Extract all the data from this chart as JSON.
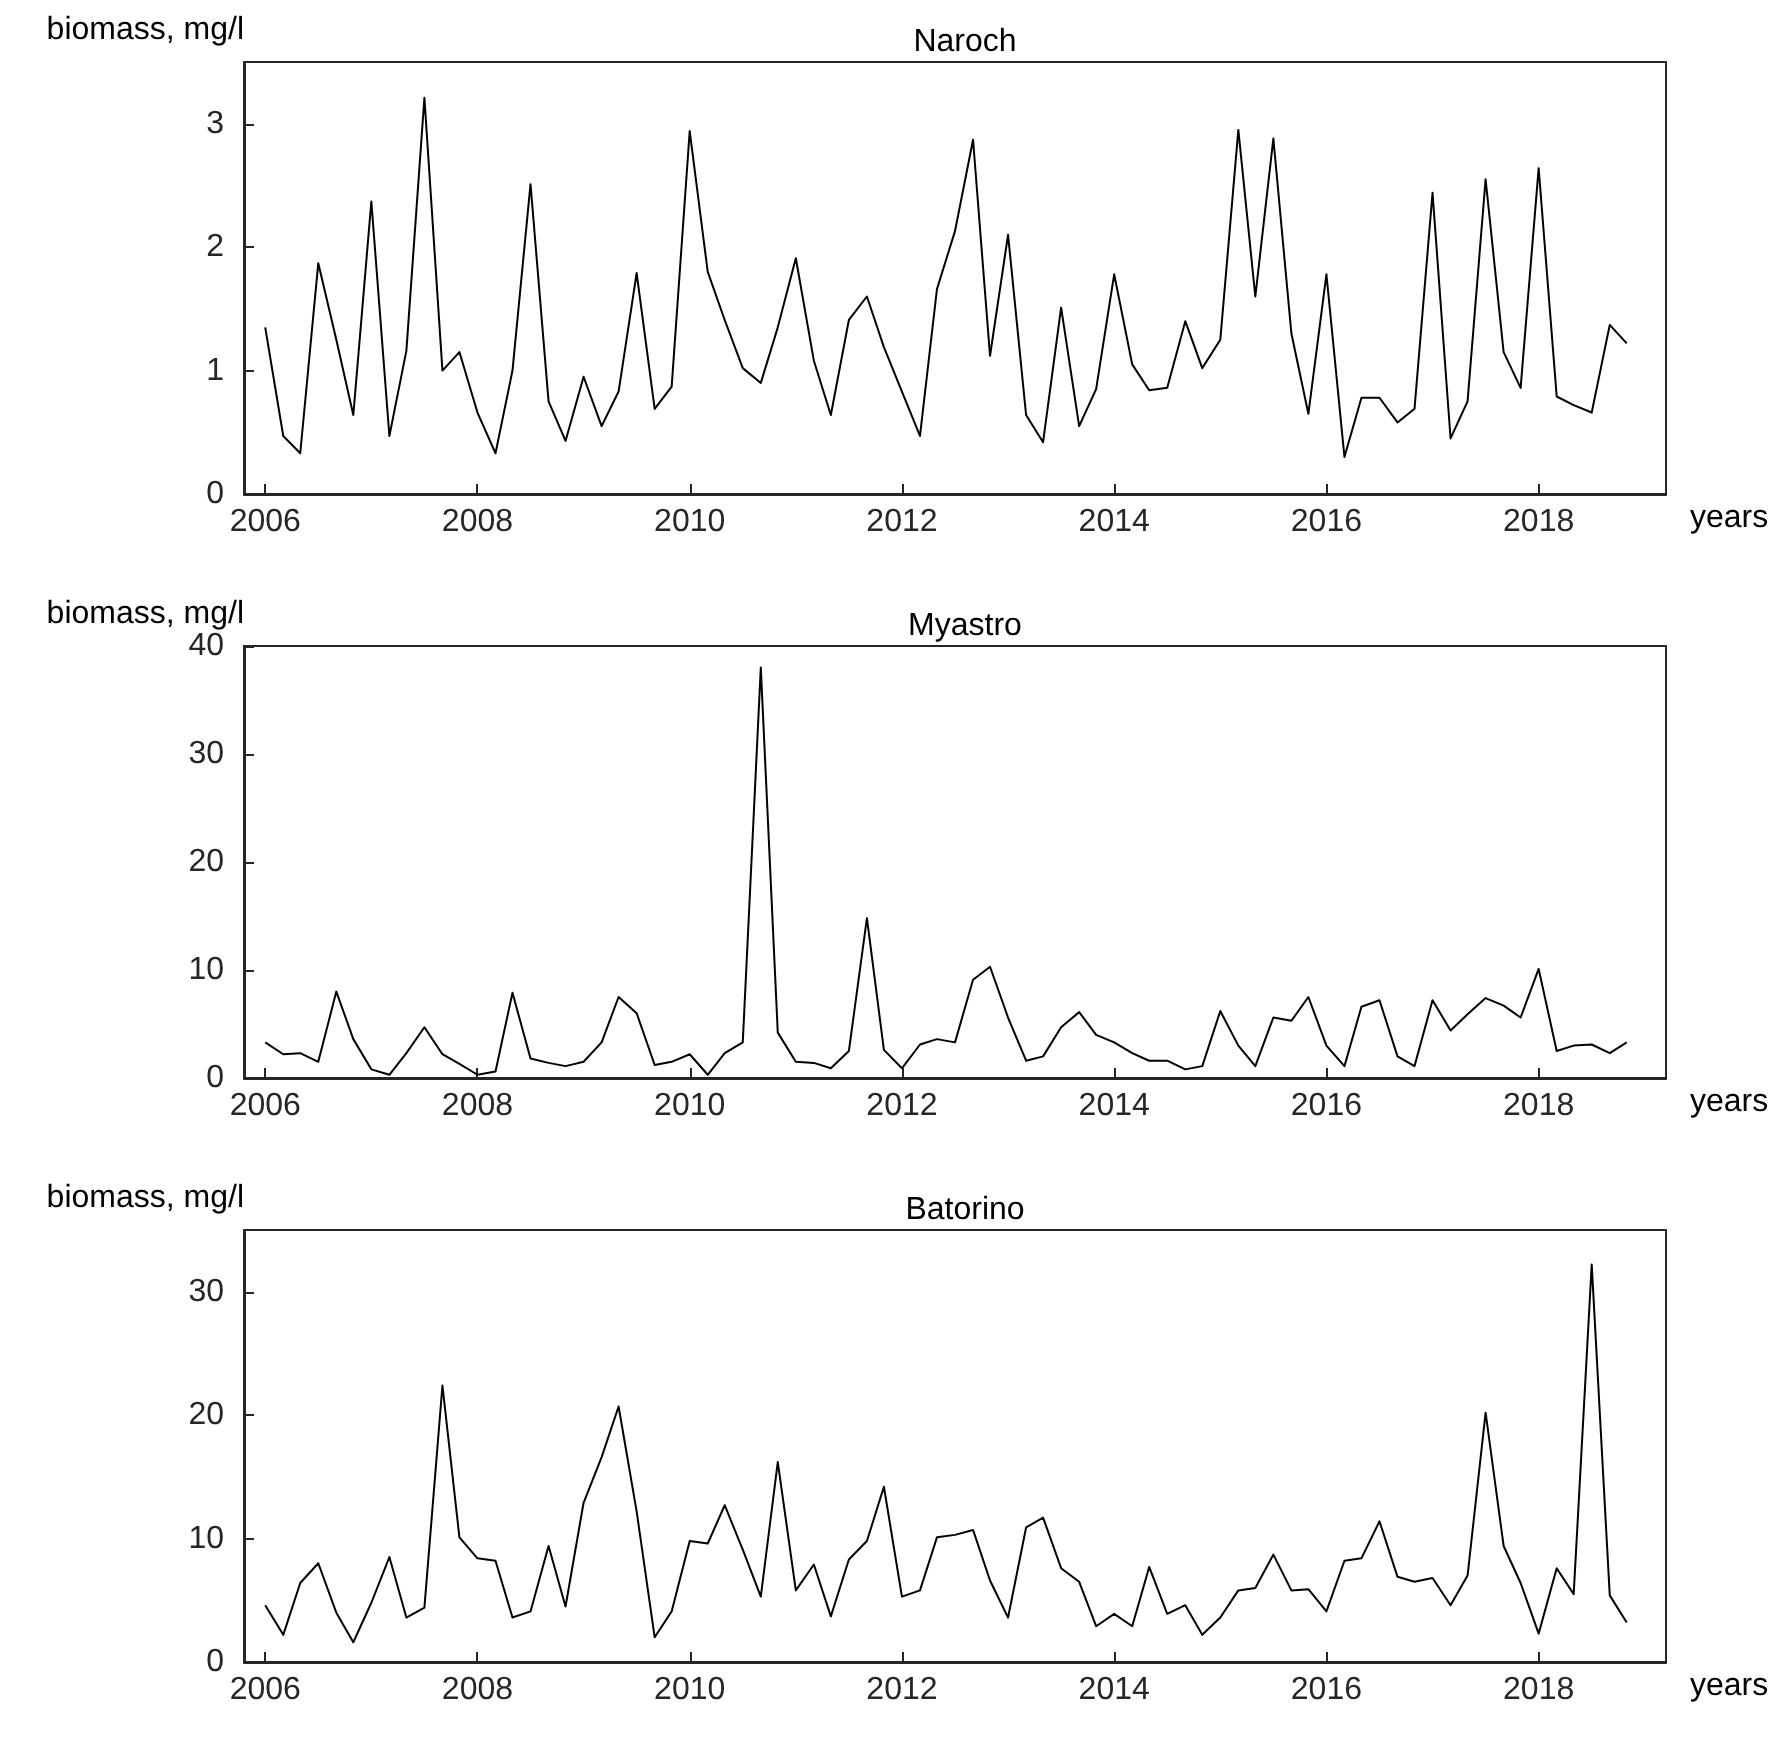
{
  "chart_data": [
    {
      "type": "line",
      "title": "Naroch",
      "ylabel": "biomass, mg/l",
      "xlabel": "years",
      "grid": false,
      "marker": "none",
      "line_style": "solid",
      "xlim": [
        2005.8,
        2019.2
      ],
      "xticks": [
        2006,
        2008,
        2010,
        2012,
        2014,
        2016,
        2018
      ],
      "ylim": [
        0,
        3.5
      ],
      "yticks": [
        0,
        1,
        2,
        3
      ],
      "x": [
        2006,
        2006.17,
        2006.33,
        2006.5,
        2006.67,
        2006.83,
        2007,
        2007.17,
        2007.33,
        2007.5,
        2007.67,
        2007.83,
        2008,
        2008.17,
        2008.33,
        2008.5,
        2008.67,
        2008.83,
        2009,
        2009.17,
        2009.33,
        2009.5,
        2009.67,
        2009.83,
        2010,
        2010.17,
        2010.33,
        2010.5,
        2010.67,
        2010.83,
        2011,
        2011.17,
        2011.33,
        2011.5,
        2011.67,
        2011.83,
        2012,
        2012.17,
        2012.33,
        2012.5,
        2012.67,
        2012.83,
        2013,
        2013.17,
        2013.33,
        2013.5,
        2013.67,
        2013.83,
        2014,
        2014.17,
        2014.33,
        2014.5,
        2014.67,
        2014.83,
        2015,
        2015.17,
        2015.33,
        2015.5,
        2015.67,
        2015.83,
        2016,
        2016.17,
        2016.33,
        2016.5,
        2016.67,
        2016.83,
        2017,
        2017.17,
        2017.33,
        2017.5,
        2017.67,
        2017.83,
        2018,
        2018.17,
        2018.33,
        2018.5,
        2018.67,
        2018.83
      ],
      "series": [
        {
          "color": "#000000",
          "values": [
            1.35,
            0.47,
            0.33,
            1.87,
            1.25,
            0.64,
            2.37,
            0.47,
            1.16,
            3.21,
            1.0,
            1.15,
            0.66,
            0.33,
            1.0,
            2.51,
            0.75,
            0.43,
            0.95,
            0.55,
            0.83,
            1.79,
            0.69,
            0.87,
            2.94,
            1.8,
            1.41,
            1.02,
            0.9,
            1.35,
            1.91,
            1.08,
            0.64,
            1.41,
            1.6,
            1.19,
            0.83,
            0.47,
            1.66,
            2.13,
            2.87,
            1.12,
            2.1,
            0.64,
            0.42,
            1.51,
            0.55,
            0.85,
            1.78,
            1.05,
            0.84,
            0.86,
            1.4,
            1.02,
            1.25,
            2.95,
            1.6,
            2.88,
            1.3,
            0.65,
            1.78,
            0.3,
            0.78,
            0.78,
            0.58,
            0.69,
            2.44,
            0.45,
            0.75,
            2.55,
            1.15,
            0.86,
            2.64,
            0.79,
            0.72,
            0.66,
            1.37,
            1.22
          ]
        }
      ]
    },
    {
      "type": "line",
      "title": "Myastro",
      "ylabel": "biomass, mg/l",
      "xlabel": "years",
      "grid": false,
      "marker": "none",
      "line_style": "solid",
      "xlim": [
        2005.8,
        2019.2
      ],
      "xticks": [
        2006,
        2008,
        2010,
        2012,
        2014,
        2016,
        2018
      ],
      "ylim": [
        0,
        40
      ],
      "yticks": [
        0,
        10,
        20,
        30,
        40
      ],
      "x": [
        2006,
        2006.17,
        2006.33,
        2006.5,
        2006.67,
        2006.83,
        2007,
        2007.17,
        2007.33,
        2007.5,
        2007.67,
        2007.83,
        2008,
        2008.17,
        2008.33,
        2008.5,
        2008.67,
        2008.83,
        2009,
        2009.17,
        2009.33,
        2009.5,
        2009.67,
        2009.83,
        2010,
        2010.17,
        2010.33,
        2010.5,
        2010.67,
        2010.83,
        2011,
        2011.17,
        2011.33,
        2011.5,
        2011.67,
        2011.83,
        2012,
        2012.17,
        2012.33,
        2012.5,
        2012.67,
        2012.83,
        2013,
        2013.17,
        2013.33,
        2013.5,
        2013.67,
        2013.83,
        2014,
        2014.17,
        2014.33,
        2014.5,
        2014.67,
        2014.83,
        2015,
        2015.17,
        2015.33,
        2015.5,
        2015.67,
        2015.83,
        2016,
        2016.17,
        2016.33,
        2016.5,
        2016.67,
        2016.83,
        2017,
        2017.17,
        2017.33,
        2017.5,
        2017.67,
        2017.83,
        2018,
        2018.17,
        2018.33,
        2018.5,
        2018.67,
        2018.83
      ],
      "series": [
        {
          "color": "#000000",
          "values": [
            3.3,
            2.2,
            2.3,
            1.5,
            8.0,
            3.6,
            0.8,
            0.3,
            2.3,
            4.7,
            2.2,
            1.3,
            0.3,
            0.6,
            7.9,
            1.8,
            1.4,
            1.1,
            1.5,
            3.3,
            7.5,
            6.0,
            1.2,
            1.5,
            2.2,
            0.3,
            2.3,
            3.3,
            38.0,
            4.2,
            1.5,
            1.4,
            0.9,
            2.5,
            14.8,
            2.6,
            0.9,
            3.1,
            3.6,
            3.3,
            9.1,
            10.3,
            5.6,
            1.6,
            2.0,
            4.7,
            6.1,
            4.0,
            3.3,
            2.3,
            1.6,
            1.6,
            0.8,
            1.1,
            6.2,
            3.0,
            1.1,
            5.6,
            5.3,
            7.5,
            3.0,
            1.1,
            6.6,
            7.2,
            2.0,
            1.1,
            7.2,
            4.4,
            5.9,
            7.4,
            6.7,
            5.6,
            10.1,
            2.5,
            3.0,
            3.1,
            2.3,
            3.3
          ]
        }
      ]
    },
    {
      "type": "line",
      "title": "Batorino",
      "ylabel": "biomass, mg/l",
      "xlabel": "years",
      "grid": false,
      "marker": "none",
      "line_style": "solid",
      "xlim": [
        2005.8,
        2019.2
      ],
      "xticks": [
        2006,
        2008,
        2010,
        2012,
        2014,
        2016,
        2018
      ],
      "ylim": [
        0,
        35
      ],
      "yticks": [
        0,
        10,
        20,
        30
      ],
      "x": [
        2006,
        2006.17,
        2006.33,
        2006.5,
        2006.67,
        2006.83,
        2007,
        2007.17,
        2007.33,
        2007.5,
        2007.67,
        2007.83,
        2008,
        2008.17,
        2008.33,
        2008.5,
        2008.67,
        2008.83,
        2009,
        2009.17,
        2009.33,
        2009.5,
        2009.67,
        2009.83,
        2010,
        2010.17,
        2010.33,
        2010.5,
        2010.67,
        2010.83,
        2011,
        2011.17,
        2011.33,
        2011.5,
        2011.67,
        2011.83,
        2012,
        2012.17,
        2012.33,
        2012.5,
        2012.67,
        2012.83,
        2013,
        2013.17,
        2013.33,
        2013.5,
        2013.67,
        2013.83,
        2014,
        2014.17,
        2014.33,
        2014.5,
        2014.67,
        2014.83,
        2015,
        2015.17,
        2015.33,
        2015.5,
        2015.67,
        2015.83,
        2016,
        2016.17,
        2016.33,
        2016.5,
        2016.67,
        2016.83,
        2017,
        2017.17,
        2017.33,
        2017.5,
        2017.67,
        2017.83,
        2018,
        2018.17,
        2018.33,
        2018.5,
        2018.67,
        2018.83
      ],
      "series": [
        {
          "color": "#000000",
          "values": [
            4.6,
            2.2,
            6.4,
            8.0,
            4.0,
            1.6,
            4.8,
            8.5,
            3.6,
            4.4,
            22.4,
            10.1,
            8.4,
            8.2,
            3.6,
            4.1,
            9.4,
            4.5,
            12.9,
            16.6,
            20.7,
            12.2,
            2.0,
            4.1,
            9.8,
            9.6,
            12.7,
            9.1,
            5.3,
            16.2,
            5.8,
            7.9,
            3.7,
            8.3,
            9.8,
            14.2,
            5.3,
            5.8,
            10.1,
            10.3,
            10.7,
            6.6,
            3.6,
            10.9,
            11.7,
            7.6,
            6.5,
            2.9,
            3.9,
            2.9,
            7.7,
            3.9,
            4.6,
            2.2,
            3.6,
            5.8,
            6.0,
            8.7,
            5.8,
            5.9,
            4.1,
            8.2,
            8.4,
            11.4,
            6.9,
            6.5,
            6.8,
            4.6,
            7.0,
            20.2,
            9.4,
            6.4,
            2.3,
            7.6,
            5.5,
            32.2,
            5.4,
            3.2
          ]
        }
      ]
    }
  ]
}
